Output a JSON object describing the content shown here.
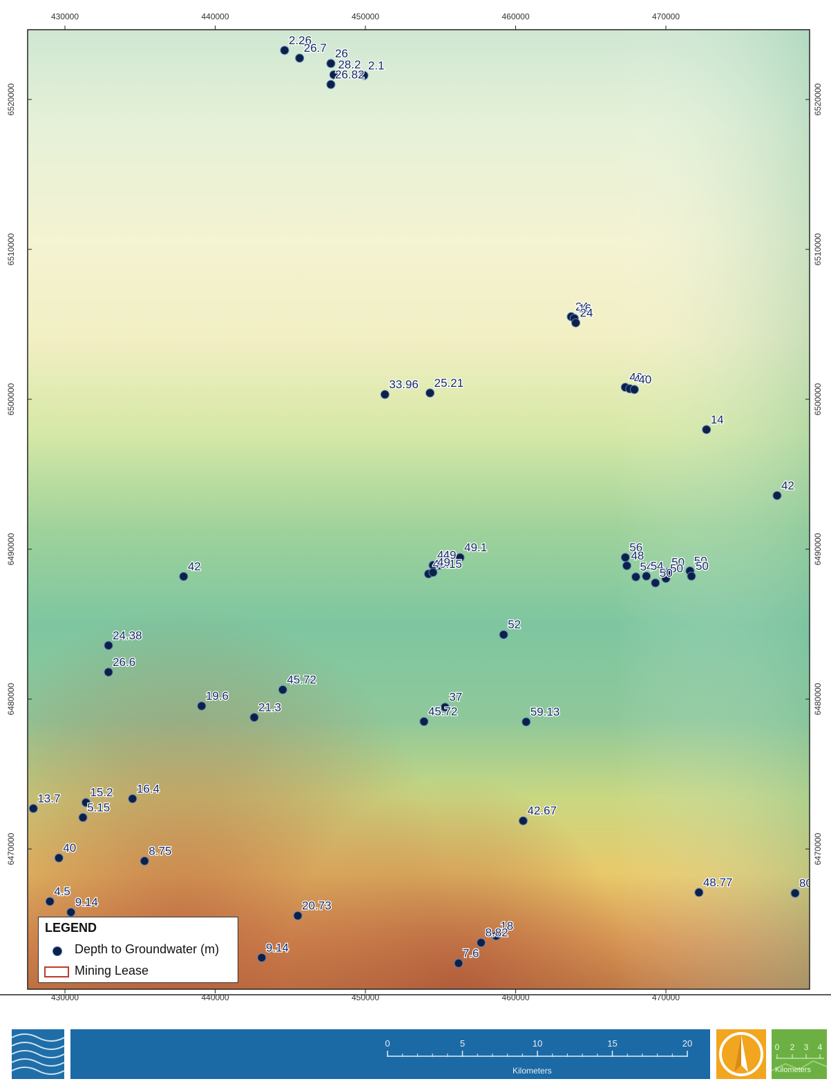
{
  "map": {
    "x_ticks": [
      "430000",
      "440000",
      "450000",
      "460000",
      "470000"
    ],
    "y_ticks": [
      "6520000",
      "6510000",
      "6500000",
      "6490000",
      "6480000",
      "6470000"
    ],
    "wells": [
      {
        "label": "2.26",
        "x": 444620,
        "y": 6523280
      },
      {
        "label": "26.7",
        "x": 445620,
        "y": 6522760
      },
      {
        "label": "26",
        "x": 447700,
        "y": 6522400
      },
      {
        "label": "28.2",
        "x": 447900,
        "y": 6521650
      },
      {
        "label": "2.1",
        "x": 449900,
        "y": 6521600
      },
      {
        "label": "26.82",
        "x": 447700,
        "y": 6521000
      },
      {
        "label": "24",
        "x": 463700,
        "y": 6505510
      },
      {
        "label": "16",
        "x": 463900,
        "y": 6505400
      },
      {
        "label": "24",
        "x": 464000,
        "y": 6505100
      },
      {
        "label": "40",
        "x": 467300,
        "y": 6500800
      },
      {
        "label": "40",
        "x": 467600,
        "y": 6500700
      },
      {
        "label": "40",
        "x": 467900,
        "y": 6500650
      },
      {
        "label": "33.96",
        "x": 451300,
        "y": 6500320
      },
      {
        "label": "25.21",
        "x": 454300,
        "y": 6500420
      },
      {
        "label": "14",
        "x": 472700,
        "y": 6497980
      },
      {
        "label": "42",
        "x": 477400,
        "y": 6493580
      },
      {
        "label": "49.1",
        "x": 456300,
        "y": 6489440
      },
      {
        "label": "46",
        "x": 454500,
        "y": 6488930
      },
      {
        "label": "49",
        "x": 454900,
        "y": 6488930
      },
      {
        "label": "48.15",
        "x": 454200,
        "y": 6488350
      },
      {
        "label": "49",
        "x": 454500,
        "y": 6488450
      },
      {
        "label": "42",
        "x": 437900,
        "y": 6488180
      },
      {
        "label": "56",
        "x": 467300,
        "y": 6489450
      },
      {
        "label": "48",
        "x": 467400,
        "y": 6488900
      },
      {
        "label": "54",
        "x": 468000,
        "y": 6488150
      },
      {
        "label": "54",
        "x": 468700,
        "y": 6488200
      },
      {
        "label": "50",
        "x": 470100,
        "y": 6488450
      },
      {
        "label": "50",
        "x": 471600,
        "y": 6488550
      },
      {
        "label": "50",
        "x": 470000,
        "y": 6488050
      },
      {
        "label": "50",
        "x": 471700,
        "y": 6488200
      },
      {
        "label": "50",
        "x": 469300,
        "y": 6487750
      },
      {
        "label": "52",
        "x": 459200,
        "y": 6484300
      },
      {
        "label": "24.38",
        "x": 432900,
        "y": 6483580
      },
      {
        "label": "26.6",
        "x": 432900,
        "y": 6481800
      },
      {
        "label": "45.72",
        "x": 444500,
        "y": 6480620
      },
      {
        "label": "19.6",
        "x": 439100,
        "y": 6479540
      },
      {
        "label": "21.3",
        "x": 442600,
        "y": 6478780
      },
      {
        "label": "37",
        "x": 455300,
        "y": 6479460
      },
      {
        "label": "45.72",
        "x": 453900,
        "y": 6478500
      },
      {
        "label": "59.13",
        "x": 460700,
        "y": 6478480
      },
      {
        "label": "13.7",
        "x": 427900,
        "y": 6472700
      },
      {
        "label": "15.2",
        "x": 431400,
        "y": 6473100
      },
      {
        "label": "16.4",
        "x": 434500,
        "y": 6473350
      },
      {
        "label": "5.15",
        "x": 431200,
        "y": 6472100
      },
      {
        "label": "42.67",
        "x": 460500,
        "y": 6471880
      },
      {
        "label": "40",
        "x": 429600,
        "y": 6469400
      },
      {
        "label": "8.75",
        "x": 435300,
        "y": 6469200
      },
      {
        "label": "4.5",
        "x": 429000,
        "y": 6466500
      },
      {
        "label": "9.14",
        "x": 430400,
        "y": 6465780
      },
      {
        "label": "48.77",
        "x": 472200,
        "y": 6467100
      },
      {
        "label": "80",
        "x": 478600,
        "y": 6467050
      },
      {
        "label": "20.73",
        "x": 445500,
        "y": 6465550
      },
      {
        "label": "18",
        "x": 458700,
        "y": 6464200
      },
      {
        "label": "8.82",
        "x": 457700,
        "y": 6463750
      },
      {
        "label": "7.6",
        "x": 456200,
        "y": 6462380
      },
      {
        "label": "9.14",
        "x": 443100,
        "y": 6462750
      }
    ]
  },
  "legend": {
    "title": "LEGEND",
    "item1": "Depth to Groundwater (m)",
    "item2": "Mining Lease"
  },
  "scalebar": {
    "ticks": [
      "0",
      "5",
      "10",
      "15",
      "20"
    ],
    "unit": "Kilometers"
  },
  "green_tile": {
    "ticks": [
      "0",
      "2",
      "3",
      "4"
    ],
    "unit": "Kilometers"
  },
  "colors": {
    "well_fill": "#0d2147",
    "label_color": "#142a66",
    "band_blue": "#1b6aa6",
    "north_orange": "#f2a51e",
    "lease_red": "#c0392b"
  }
}
